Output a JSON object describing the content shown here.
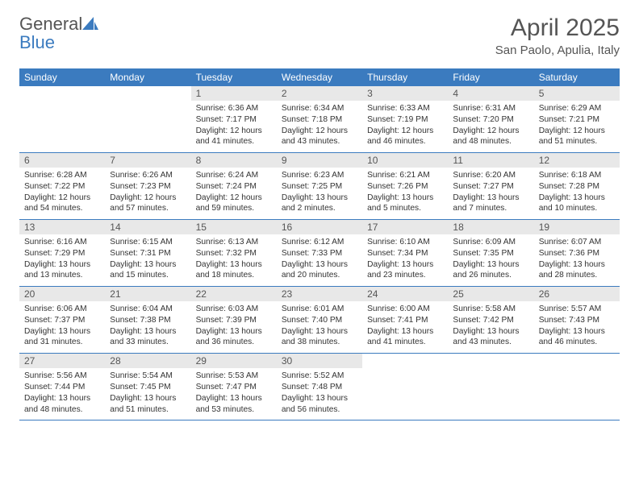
{
  "brand": {
    "name_part1": "General",
    "name_part2": "Blue"
  },
  "title": "April 2025",
  "location": "San Paolo, Apulia, Italy",
  "colors": {
    "header_bg": "#3b7bbf",
    "header_text": "#ffffff",
    "daynum_bg": "#e8e8e8",
    "row_border": "#3b7bbf",
    "body_text": "#333333",
    "title_text": "#555555"
  },
  "fonts": {
    "family": "Arial",
    "title_size": 30,
    "subtitle_size": 15,
    "header_size": 12,
    "cell_size": 10
  },
  "day_headers": [
    "Sunday",
    "Monday",
    "Tuesday",
    "Wednesday",
    "Thursday",
    "Friday",
    "Saturday"
  ],
  "weeks": [
    [
      {
        "empty": true
      },
      {
        "empty": true
      },
      {
        "num": "1",
        "sunrise": "Sunrise: 6:36 AM",
        "sunset": "Sunset: 7:17 PM",
        "daylight1": "Daylight: 12 hours",
        "daylight2": "and 41 minutes."
      },
      {
        "num": "2",
        "sunrise": "Sunrise: 6:34 AM",
        "sunset": "Sunset: 7:18 PM",
        "daylight1": "Daylight: 12 hours",
        "daylight2": "and 43 minutes."
      },
      {
        "num": "3",
        "sunrise": "Sunrise: 6:33 AM",
        "sunset": "Sunset: 7:19 PM",
        "daylight1": "Daylight: 12 hours",
        "daylight2": "and 46 minutes."
      },
      {
        "num": "4",
        "sunrise": "Sunrise: 6:31 AM",
        "sunset": "Sunset: 7:20 PM",
        "daylight1": "Daylight: 12 hours",
        "daylight2": "and 48 minutes."
      },
      {
        "num": "5",
        "sunrise": "Sunrise: 6:29 AM",
        "sunset": "Sunset: 7:21 PM",
        "daylight1": "Daylight: 12 hours",
        "daylight2": "and 51 minutes."
      }
    ],
    [
      {
        "num": "6",
        "sunrise": "Sunrise: 6:28 AM",
        "sunset": "Sunset: 7:22 PM",
        "daylight1": "Daylight: 12 hours",
        "daylight2": "and 54 minutes."
      },
      {
        "num": "7",
        "sunrise": "Sunrise: 6:26 AM",
        "sunset": "Sunset: 7:23 PM",
        "daylight1": "Daylight: 12 hours",
        "daylight2": "and 57 minutes."
      },
      {
        "num": "8",
        "sunrise": "Sunrise: 6:24 AM",
        "sunset": "Sunset: 7:24 PM",
        "daylight1": "Daylight: 12 hours",
        "daylight2": "and 59 minutes."
      },
      {
        "num": "9",
        "sunrise": "Sunrise: 6:23 AM",
        "sunset": "Sunset: 7:25 PM",
        "daylight1": "Daylight: 13 hours",
        "daylight2": "and 2 minutes."
      },
      {
        "num": "10",
        "sunrise": "Sunrise: 6:21 AM",
        "sunset": "Sunset: 7:26 PM",
        "daylight1": "Daylight: 13 hours",
        "daylight2": "and 5 minutes."
      },
      {
        "num": "11",
        "sunrise": "Sunrise: 6:20 AM",
        "sunset": "Sunset: 7:27 PM",
        "daylight1": "Daylight: 13 hours",
        "daylight2": "and 7 minutes."
      },
      {
        "num": "12",
        "sunrise": "Sunrise: 6:18 AM",
        "sunset": "Sunset: 7:28 PM",
        "daylight1": "Daylight: 13 hours",
        "daylight2": "and 10 minutes."
      }
    ],
    [
      {
        "num": "13",
        "sunrise": "Sunrise: 6:16 AM",
        "sunset": "Sunset: 7:29 PM",
        "daylight1": "Daylight: 13 hours",
        "daylight2": "and 13 minutes."
      },
      {
        "num": "14",
        "sunrise": "Sunrise: 6:15 AM",
        "sunset": "Sunset: 7:31 PM",
        "daylight1": "Daylight: 13 hours",
        "daylight2": "and 15 minutes."
      },
      {
        "num": "15",
        "sunrise": "Sunrise: 6:13 AM",
        "sunset": "Sunset: 7:32 PM",
        "daylight1": "Daylight: 13 hours",
        "daylight2": "and 18 minutes."
      },
      {
        "num": "16",
        "sunrise": "Sunrise: 6:12 AM",
        "sunset": "Sunset: 7:33 PM",
        "daylight1": "Daylight: 13 hours",
        "daylight2": "and 20 minutes."
      },
      {
        "num": "17",
        "sunrise": "Sunrise: 6:10 AM",
        "sunset": "Sunset: 7:34 PM",
        "daylight1": "Daylight: 13 hours",
        "daylight2": "and 23 minutes."
      },
      {
        "num": "18",
        "sunrise": "Sunrise: 6:09 AM",
        "sunset": "Sunset: 7:35 PM",
        "daylight1": "Daylight: 13 hours",
        "daylight2": "and 26 minutes."
      },
      {
        "num": "19",
        "sunrise": "Sunrise: 6:07 AM",
        "sunset": "Sunset: 7:36 PM",
        "daylight1": "Daylight: 13 hours",
        "daylight2": "and 28 minutes."
      }
    ],
    [
      {
        "num": "20",
        "sunrise": "Sunrise: 6:06 AM",
        "sunset": "Sunset: 7:37 PM",
        "daylight1": "Daylight: 13 hours",
        "daylight2": "and 31 minutes."
      },
      {
        "num": "21",
        "sunrise": "Sunrise: 6:04 AM",
        "sunset": "Sunset: 7:38 PM",
        "daylight1": "Daylight: 13 hours",
        "daylight2": "and 33 minutes."
      },
      {
        "num": "22",
        "sunrise": "Sunrise: 6:03 AM",
        "sunset": "Sunset: 7:39 PM",
        "daylight1": "Daylight: 13 hours",
        "daylight2": "and 36 minutes."
      },
      {
        "num": "23",
        "sunrise": "Sunrise: 6:01 AM",
        "sunset": "Sunset: 7:40 PM",
        "daylight1": "Daylight: 13 hours",
        "daylight2": "and 38 minutes."
      },
      {
        "num": "24",
        "sunrise": "Sunrise: 6:00 AM",
        "sunset": "Sunset: 7:41 PM",
        "daylight1": "Daylight: 13 hours",
        "daylight2": "and 41 minutes."
      },
      {
        "num": "25",
        "sunrise": "Sunrise: 5:58 AM",
        "sunset": "Sunset: 7:42 PM",
        "daylight1": "Daylight: 13 hours",
        "daylight2": "and 43 minutes."
      },
      {
        "num": "26",
        "sunrise": "Sunrise: 5:57 AM",
        "sunset": "Sunset: 7:43 PM",
        "daylight1": "Daylight: 13 hours",
        "daylight2": "and 46 minutes."
      }
    ],
    [
      {
        "num": "27",
        "sunrise": "Sunrise: 5:56 AM",
        "sunset": "Sunset: 7:44 PM",
        "daylight1": "Daylight: 13 hours",
        "daylight2": "and 48 minutes."
      },
      {
        "num": "28",
        "sunrise": "Sunrise: 5:54 AM",
        "sunset": "Sunset: 7:45 PM",
        "daylight1": "Daylight: 13 hours",
        "daylight2": "and 51 minutes."
      },
      {
        "num": "29",
        "sunrise": "Sunrise: 5:53 AM",
        "sunset": "Sunset: 7:47 PM",
        "daylight1": "Daylight: 13 hours",
        "daylight2": "and 53 minutes."
      },
      {
        "num": "30",
        "sunrise": "Sunrise: 5:52 AM",
        "sunset": "Sunset: 7:48 PM",
        "daylight1": "Daylight: 13 hours",
        "daylight2": "and 56 minutes."
      },
      {
        "empty": true
      },
      {
        "empty": true
      },
      {
        "empty": true
      }
    ]
  ]
}
